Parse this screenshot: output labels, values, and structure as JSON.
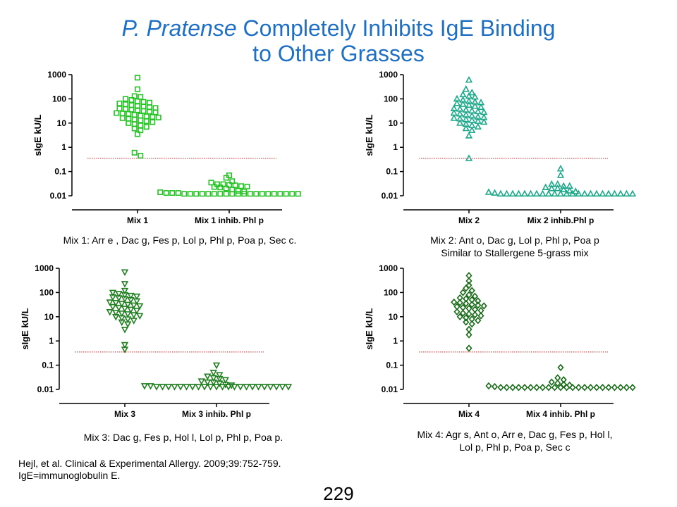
{
  "title": {
    "italic_part": "P. Pratense",
    "rest_line1": " Completely Inhibits IgE Binding",
    "line2": "to Other Grasses"
  },
  "chart_data": [
    {
      "type": "scatter",
      "ylabel": "sIgE kU/L",
      "yscale": "log",
      "ylim": [
        0.01,
        1000
      ],
      "yticks": [
        "1000",
        "100",
        "10",
        "1",
        "0.1",
        "0.01"
      ],
      "categories": [
        "Mix 1",
        "Mix 1 inhib. Phl p"
      ],
      "marker": "square",
      "color": "#22c322",
      "cutoff": 0.35,
      "series": [
        {
          "values": [
            750,
            250,
            130,
            120,
            100,
            90,
            80,
            75,
            70,
            65,
            60,
            55,
            50,
            48,
            45,
            42,
            40,
            38,
            36,
            34,
            32,
            30,
            28,
            26,
            25,
            24,
            22,
            20,
            19,
            18,
            17,
            16,
            15,
            14,
            13,
            12,
            11,
            10,
            9,
            8,
            7,
            6,
            5,
            3.5,
            0.6,
            0.45
          ]
        },
        {
          "values": [
            0.07,
            0.055,
            0.04,
            0.035,
            0.03,
            0.03,
            0.028,
            0.027,
            0.025,
            0.024,
            0.023,
            0.022,
            0.02,
            0.018,
            0.016,
            0.015,
            0.014,
            0.013,
            0.013,
            0.013,
            0.012,
            0.012,
            0.012,
            0.012,
            0.012,
            0.012,
            0.012,
            0.012,
            0.012,
            0.012,
            0.012,
            0.012,
            0.012,
            0.012,
            0.012,
            0.012,
            0.012,
            0.012,
            0.012,
            0.012
          ]
        }
      ],
      "caption": [
        "Mix 1: Arr e , Dac g, Fes p, Lol p, Phl p, Poa p, Sec c."
      ]
    },
    {
      "type": "scatter",
      "ylabel": "sIgE kU/L",
      "yscale": "log",
      "ylim": [
        0.01,
        1000
      ],
      "yticks": [
        "1000",
        "100",
        "10",
        "1",
        "0.1",
        "0.01"
      ],
      "categories": [
        "Mix 2",
        "Mix 2 inhib.Phl p"
      ],
      "marker": "triangle-up",
      "color": "#1ba889",
      "cutoff": 0.35,
      "series": [
        {
          "values": [
            600,
            250,
            180,
            150,
            130,
            120,
            100,
            90,
            80,
            75,
            70,
            65,
            60,
            55,
            50,
            45,
            40,
            38,
            35,
            32,
            30,
            28,
            26,
            24,
            22,
            20,
            18,
            17,
            16,
            15,
            14,
            13,
            12,
            11,
            10,
            9,
            8,
            7,
            6,
            5,
            3,
            0.35
          ]
        },
        {
          "values": [
            0.13,
            0.07,
            0.03,
            0.03,
            0.025,
            0.025,
            0.022,
            0.02,
            0.02,
            0.018,
            0.016,
            0.015,
            0.014,
            0.013,
            0.012,
            0.012,
            0.012,
            0.012,
            0.012,
            0.012,
            0.012,
            0.012,
            0.012,
            0.012,
            0.012,
            0.012,
            0.012,
            0.012,
            0.012,
            0.012,
            0.012,
            0.012,
            0.012,
            0.012,
            0.012,
            0.012,
            0.012
          ]
        }
      ],
      "caption": [
        "Mix 2: Ant o, Dac g, Lol p, Phl p, Poa p",
        "Similar to Stallergene 5-grass mix"
      ]
    },
    {
      "type": "scatter",
      "ylabel": "sIgE kU/L",
      "yscale": "log",
      "ylim": [
        0.01,
        1000
      ],
      "yticks": [
        "1000",
        "100",
        "10",
        "1",
        "0.1",
        "0.01"
      ],
      "categories": [
        "Mix 3",
        "Mix 3 inhib. Phl p"
      ],
      "marker": "triangle-down",
      "color": "#1f7f1f",
      "cutoff": 0.35,
      "series": [
        {
          "values": [
            700,
            230,
            120,
            100,
            90,
            80,
            75,
            70,
            65,
            60,
            55,
            50,
            45,
            40,
            38,
            35,
            32,
            30,
            28,
            26,
            24,
            22,
            20,
            18,
            16,
            15,
            14,
            13,
            12,
            11,
            10,
            9,
            8,
            7,
            6,
            5,
            3,
            0.7,
            0.45
          ]
        },
        {
          "values": [
            0.1,
            0.05,
            0.04,
            0.035,
            0.03,
            0.028,
            0.025,
            0.022,
            0.02,
            0.02,
            0.018,
            0.016,
            0.015,
            0.014,
            0.014,
            0.013,
            0.013,
            0.013,
            0.013,
            0.013,
            0.013,
            0.013,
            0.013,
            0.013,
            0.013,
            0.013,
            0.013,
            0.013,
            0.013,
            0.013,
            0.013,
            0.013,
            0.013,
            0.013,
            0.013,
            0.013,
            0.013,
            0.013
          ]
        }
      ],
      "caption": [
        "Mix 3: Dac g, Fes p, Hol l, Lol p, Phl p, Poa p."
      ]
    },
    {
      "type": "scatter",
      "ylabel": "sIgE kU/L",
      "yscale": "log",
      "ylim": [
        0.01,
        1000
      ],
      "yticks": [
        "1000",
        "100",
        "10",
        "1",
        "0.1",
        "0.01"
      ],
      "categories": [
        "Mix 4",
        "Mix 4 inhib. Phl p"
      ],
      "marker": "diamond",
      "color": "#176b17",
      "cutoff": 0.35,
      "series": [
        {
          "values": [
            500,
            300,
            200,
            150,
            120,
            100,
            80,
            70,
            60,
            55,
            50,
            45,
            40,
            38,
            35,
            32,
            30,
            28,
            26,
            24,
            22,
            20,
            18,
            16,
            14,
            13,
            12,
            11,
            10,
            9,
            8,
            7,
            6,
            5,
            3,
            1.8,
            0.5
          ]
        },
        {
          "values": [
            0.08,
            0.03,
            0.025,
            0.02,
            0.018,
            0.016,
            0.015,
            0.014,
            0.013,
            0.012,
            0.012,
            0.012,
            0.012,
            0.012,
            0.012,
            0.012,
            0.012,
            0.012,
            0.012,
            0.012,
            0.012,
            0.012,
            0.012,
            0.012,
            0.012,
            0.012,
            0.012,
            0.012,
            0.012,
            0.012,
            0.012,
            0.012
          ]
        }
      ],
      "caption": [
        "Mix 4: Agr s, Ant o, Arr e, Dac g, Fes p, Hol l,",
        "Lol p, Phl p, Poa p, Sec c"
      ]
    }
  ],
  "citation": [
    "Hejl, et al. Clinical & Experimental Allergy. 2009;39:752-759.",
    "IgE=immunoglobulin  E."
  ],
  "page_number": "229"
}
